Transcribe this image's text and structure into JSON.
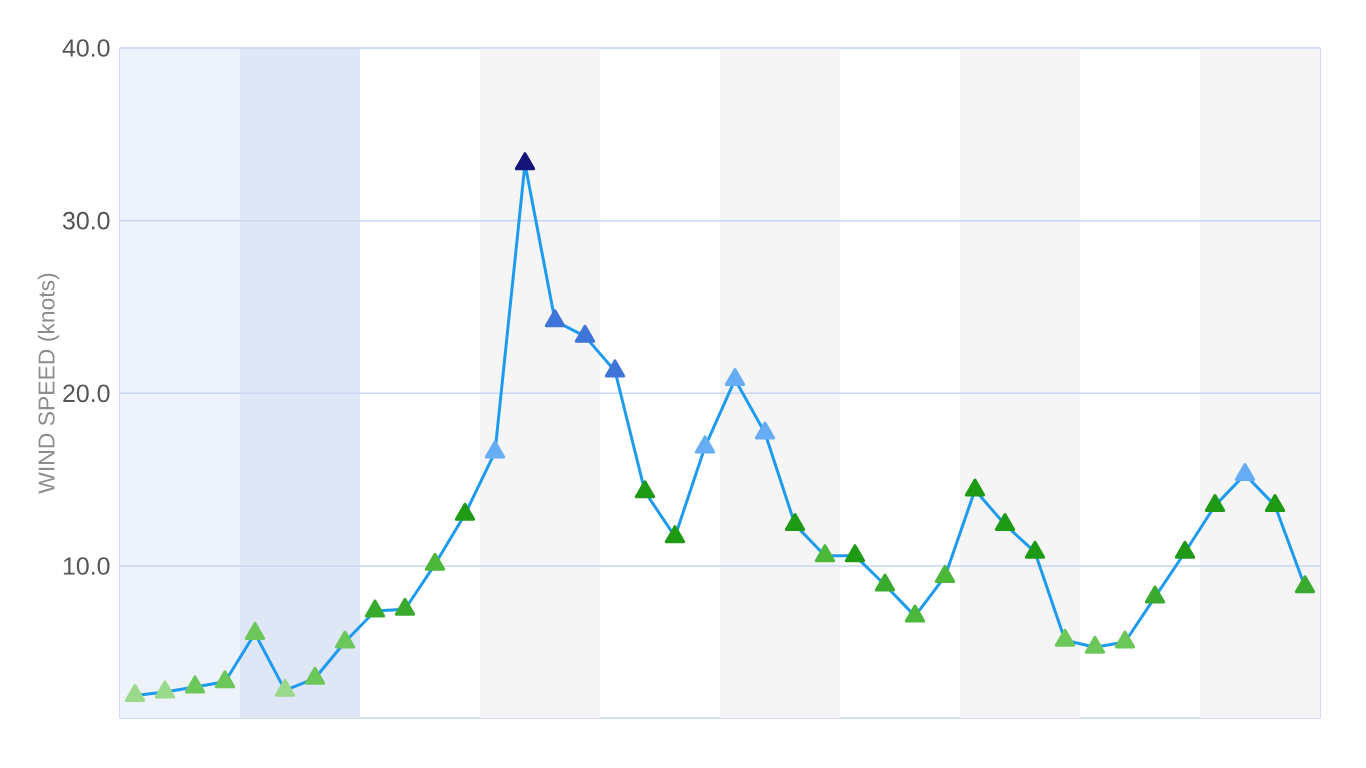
{
  "chart_data": {
    "type": "line",
    "ylabel": "WIND SPEED (knots)",
    "categories": [
      null,
      null,
      null,
      null,
      null,
      null,
      null,
      null,
      null,
      null,
      null,
      null,
      null,
      null,
      null,
      null,
      null,
      null,
      null,
      null,
      null,
      null,
      null,
      null,
      null,
      null,
      null,
      null,
      null,
      null,
      null,
      null,
      null,
      null,
      null,
      null,
      null,
      null,
      null,
      null
    ],
    "series": [
      {
        "color": "#1e9bef",
        "values": [
          2.5,
          2.7,
          3.0,
          3.3,
          6.1,
          2.8,
          3.5,
          5.6,
          7.4,
          7.5,
          10.1,
          13.0,
          16.6,
          33.3,
          24.2,
          23.3,
          21.3,
          14.3,
          11.7,
          16.9,
          20.8,
          17.7,
          12.4,
          10.6,
          10.6,
          8.9,
          7.1,
          9.4,
          14.4,
          12.4,
          10.8,
          5.7,
          5.3,
          5.6,
          8.2,
          10.8,
          13.5,
          15.3,
          13.5,
          8.8
        ],
        "colors": [
          "#9ad98b",
          "#9ad98b",
          "#6cc75a",
          "#6cc75a",
          "#6cc75a",
          "#9ad98b",
          "#6cc75a",
          "#6cc75a",
          "#3aaa2e",
          "#3aaa2e",
          "#4cb83a",
          "#1e9a14",
          "#66adf5",
          "#14147a",
          "#3f74d8",
          "#3f74d8",
          "#3f74d8",
          "#1e9a14",
          "#1e9a14",
          "#66adf5",
          "#66adf5",
          "#66adf5",
          "#1e9a14",
          "#4cb83a",
          "#1e9a14",
          "#3aaa2e",
          "#4cb83a",
          "#4cb83a",
          "#1e9a14",
          "#1e9a14",
          "#1e9a14",
          "#6cc75a",
          "#6cc75a",
          "#6cc75a",
          "#3aaa2e",
          "#1e9a14",
          "#1e9a14",
          "#66adf5",
          "#1e9a14",
          "#3aaa2e"
        ]
      }
    ],
    "ylim": [
      1.2,
      40
    ],
    "yticks": [
      {
        "value": 10,
        "label": "10.0"
      },
      {
        "value": 20,
        "label": "20.0"
      },
      {
        "value": 30,
        "label": "30.0"
      },
      {
        "value": 40,
        "label": "40.0"
      }
    ],
    "grid": "y",
    "marker": "triangle",
    "line_style": "solid"
  }
}
